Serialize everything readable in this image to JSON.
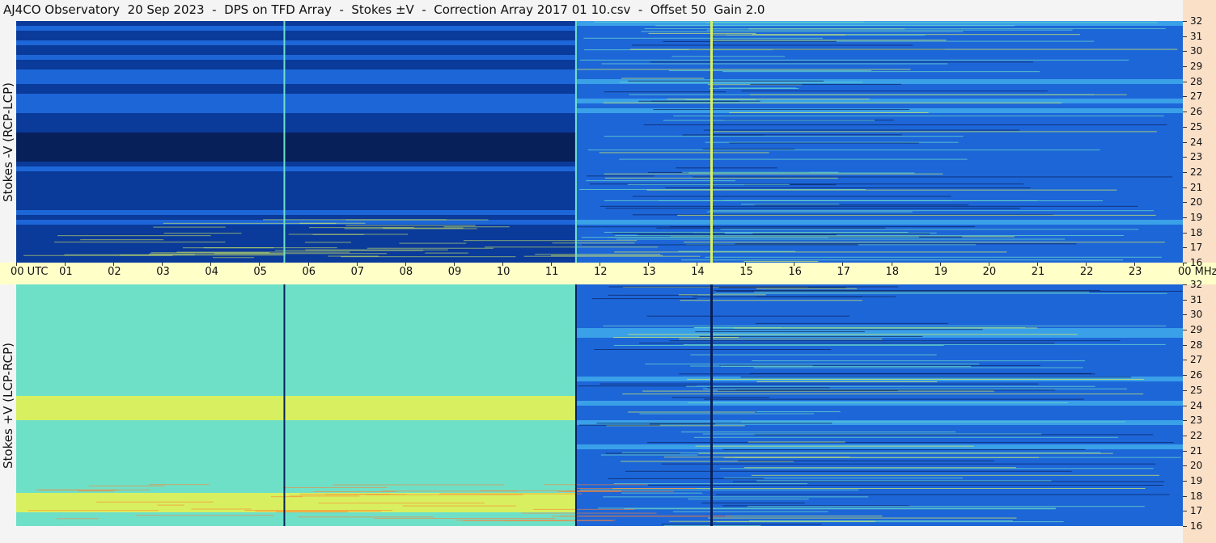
{
  "header": {
    "title": "AJ4CO Observatory  20 Sep 2023  -  DPS on TFD Array  -  Stokes ±V  -  Correction Array 2017 01 10.csv  -  Offset 50  Gain 2.0"
  },
  "chart_data": [
    {
      "type": "heatmap",
      "panel": "top",
      "ylabel": "Stokes -V (RCP-LCP)",
      "x_unit": "UTC",
      "y_unit": "MHz",
      "xlim": [
        0,
        24
      ],
      "ylim": [
        16,
        32
      ],
      "x_ticks": [
        "00 UTC",
        "01",
        "02",
        "03",
        "04",
        "05",
        "06",
        "07",
        "08",
        "09",
        "10",
        "11",
        "12",
        "13",
        "14",
        "15",
        "16",
        "17",
        "18",
        "19",
        "20",
        "21",
        "22",
        "23",
        "00 MHz"
      ],
      "y_ticks": [
        "16",
        "17",
        "18",
        "19",
        "20",
        "21",
        "22",
        "23",
        "24",
        "25",
        "26",
        "27",
        "28",
        "29",
        "30",
        "31",
        "32"
      ],
      "colormap": [
        "#08205a",
        "#0a3a9a",
        "#1d66d8",
        "#3aa0e8",
        "#6fe0c8",
        "#d8f060",
        "#ff8030"
      ],
      "regions": [
        {
          "x": [
            0,
            11.5
          ],
          "description_level": "low"
        },
        {
          "x": [
            11.5,
            24
          ],
          "description_level": "medium"
        }
      ],
      "vertical_lines_utc": [
        5.5,
        11.5,
        14.28
      ]
    },
    {
      "type": "heatmap",
      "panel": "bottom",
      "ylabel": "Stokes +V (LCP-RCP)",
      "x_unit": "UTC",
      "y_unit": "MHz",
      "xlim": [
        0,
        24
      ],
      "ylim": [
        16,
        32
      ],
      "x_ticks": [
        "00 UTC",
        "01",
        "02",
        "03",
        "04",
        "05",
        "06",
        "07",
        "08",
        "09",
        "10",
        "11",
        "12",
        "13",
        "14",
        "15",
        "16",
        "17",
        "18",
        "19",
        "20",
        "21",
        "22",
        "23",
        "00 MHz"
      ],
      "y_ticks": [
        "16",
        "17",
        "18",
        "19",
        "20",
        "21",
        "22",
        "23",
        "24",
        "25",
        "26",
        "27",
        "28",
        "29",
        "30",
        "31",
        "32"
      ],
      "colormap": [
        "#08205a",
        "#0a3a9a",
        "#1d66d8",
        "#3aa0e8",
        "#6fe0c8",
        "#d8f060",
        "#ff8030"
      ],
      "regions": [
        {
          "x": [
            0,
            11.5
          ],
          "description_level": "high"
        },
        {
          "x": [
            11.5,
            24
          ],
          "description_level": "medium"
        }
      ],
      "vertical_lines_utc": [
        5.5,
        11.5,
        14.28
      ]
    }
  ]
}
